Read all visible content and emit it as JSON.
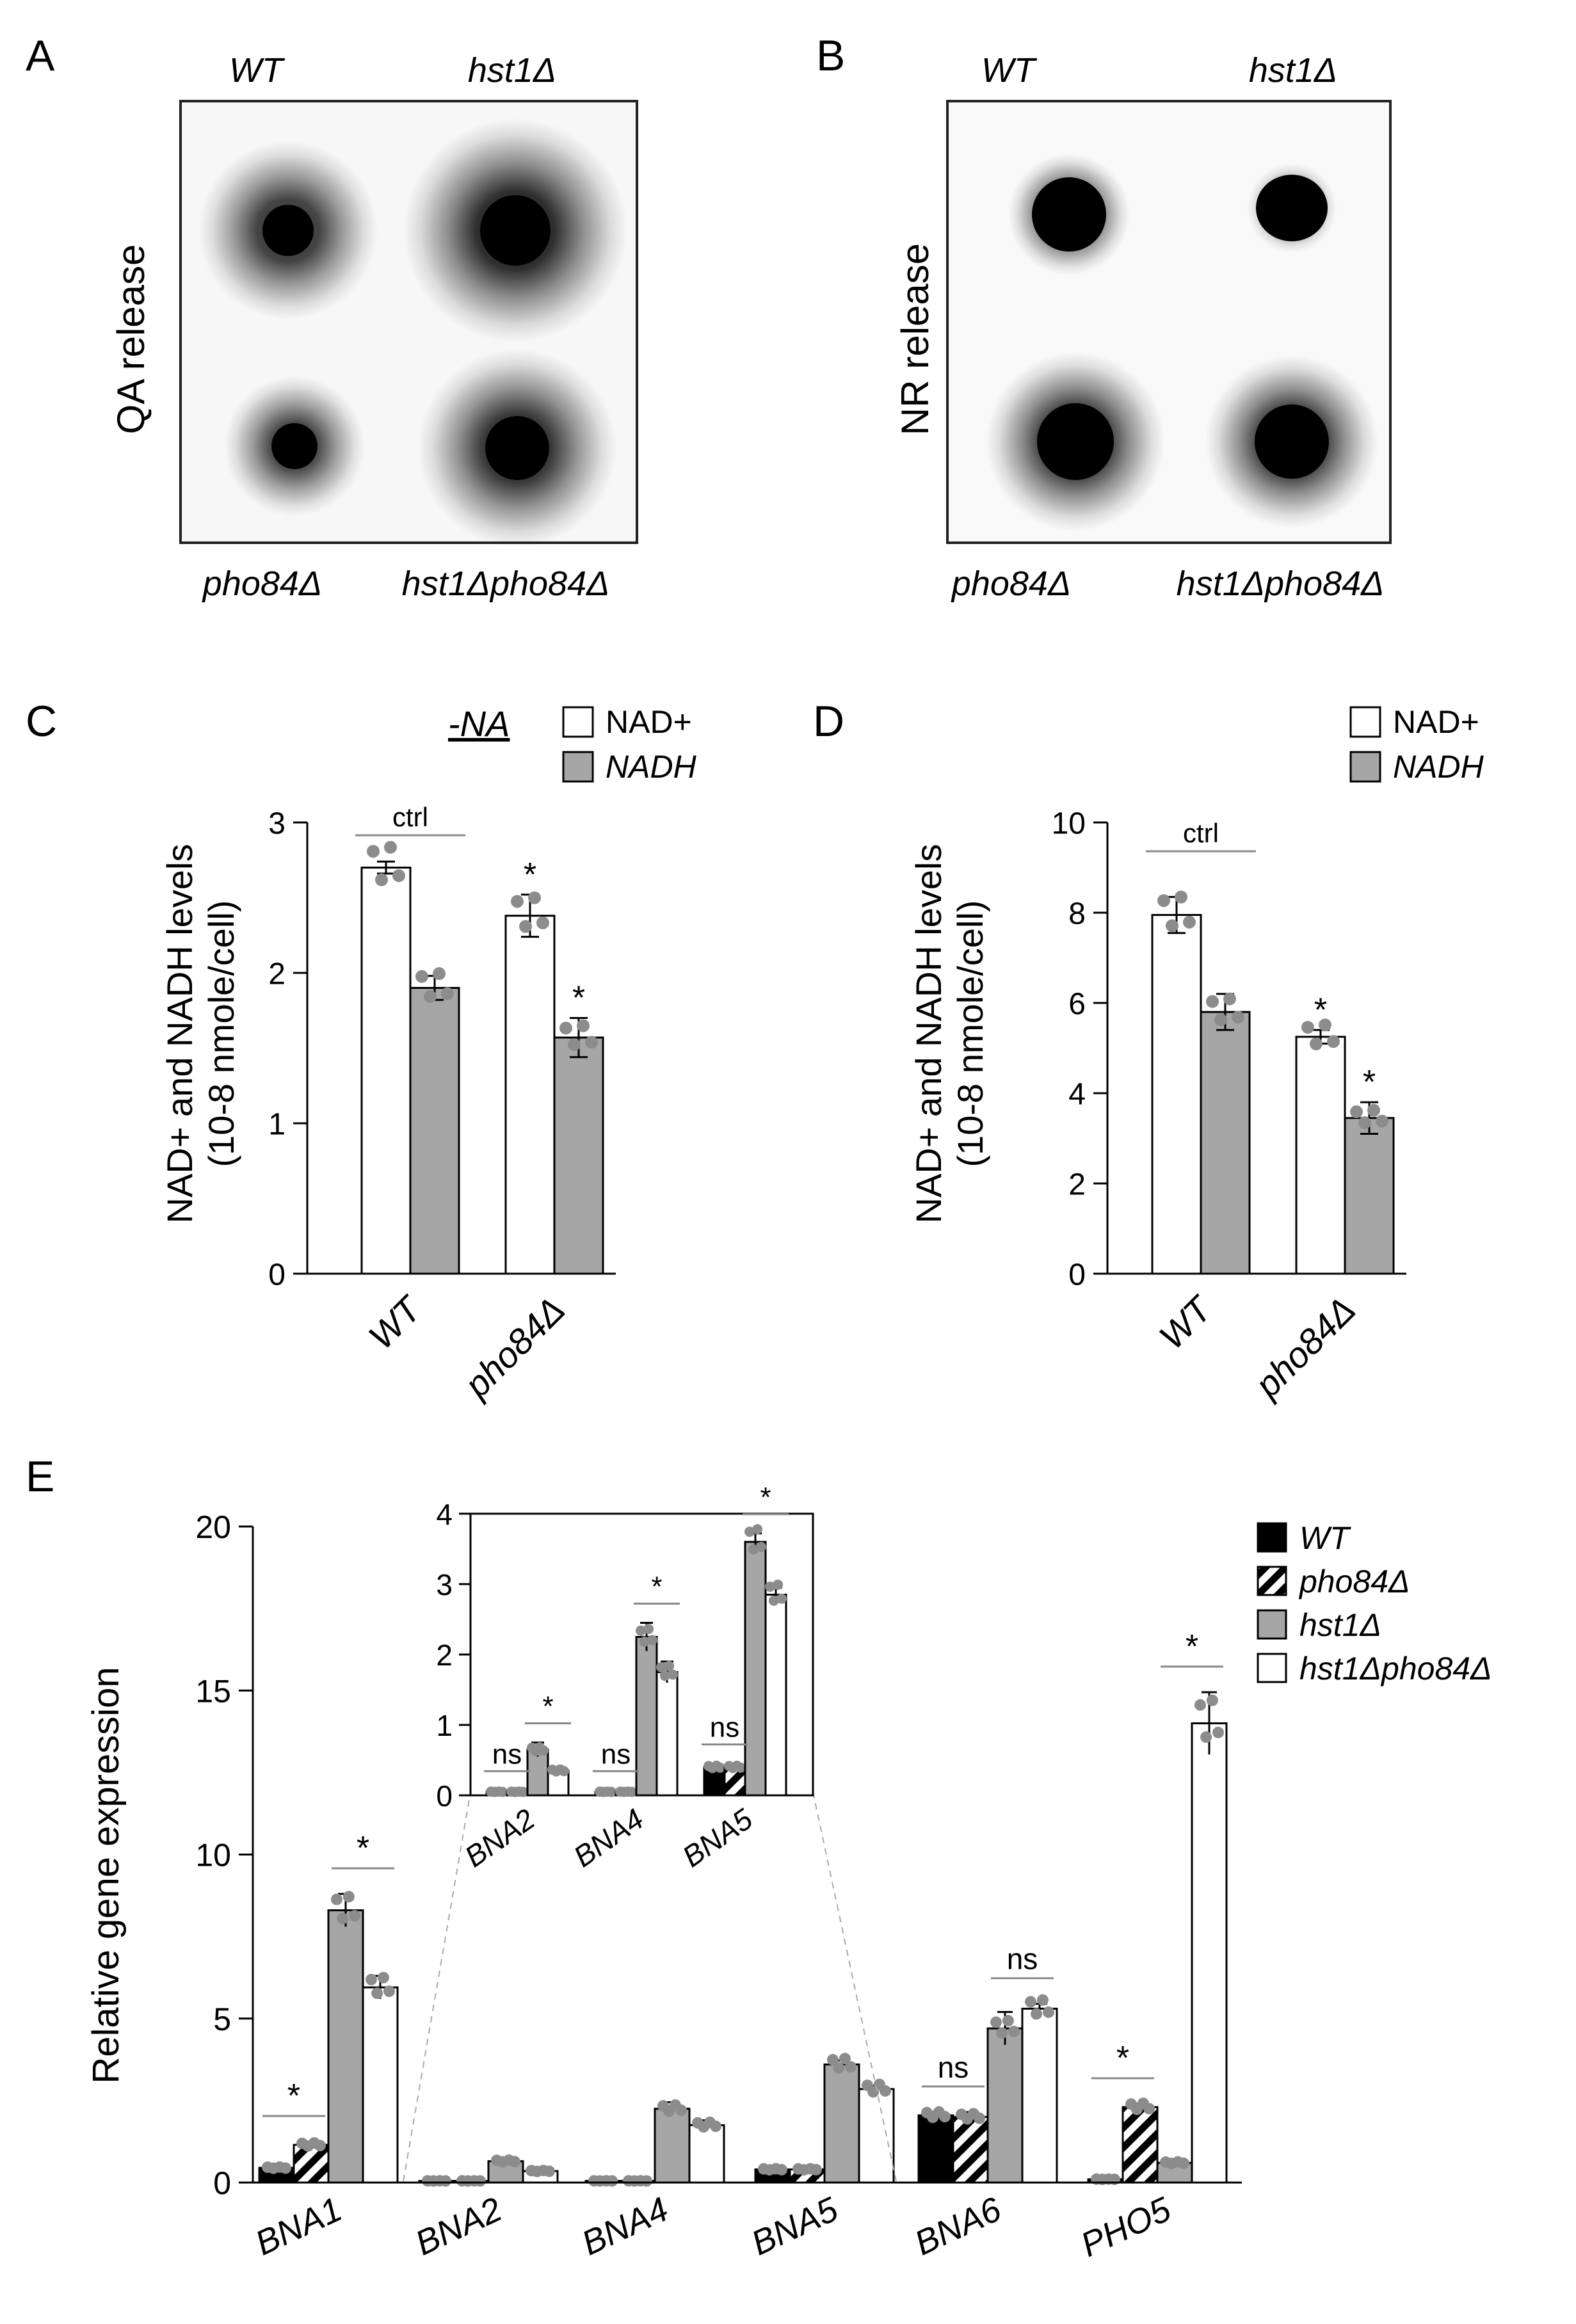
{
  "panels": {
    "A": {
      "letter": "A",
      "side_label": "QA release",
      "top_left": "WT",
      "top_right": "hst1Δ",
      "bottom_left": "pho84Δ",
      "bottom_right": "hst1Δpho84Δ"
    },
    "B": {
      "letter": "B",
      "side_label": "NR release",
      "top_left": "WT",
      "top_right": "hst1Δ",
      "bottom_left": "pho84Δ",
      "bottom_right": "hst1Δpho84Δ"
    },
    "C": {
      "letter": "C",
      "condition": "-NA"
    },
    "D": {
      "letter": "D"
    },
    "E": {
      "letter": "E"
    }
  },
  "colors": {
    "nad": "#ffffff",
    "nadh": "#a6a6a6",
    "wt": "#000000",
    "hst1": "#a6a6a6",
    "hst1pho84": "#ffffff",
    "dot": "#8c8c8c"
  },
  "chart_data": [
    {
      "id": "C",
      "type": "bar",
      "categories": [
        "WT",
        "pho84Δ"
      ],
      "series": [
        {
          "name": "NAD+",
          "values": [
            2.7,
            2.38
          ],
          "errors": [
            0.04,
            0.14
          ]
        },
        {
          "name": "NADH",
          "values": [
            1.9,
            1.57
          ],
          "errors": [
            0.08,
            0.13
          ]
        }
      ],
      "ylabel_line1": "NAD+ and NADH levels",
      "ylabel_line2": "(10-8 nmole/cell)",
      "ylim": [
        0,
        3
      ],
      "yticks": [
        "0",
        "1",
        "2",
        "3"
      ],
      "legend": [
        "NAD+",
        "NADH"
      ],
      "legend_position": "top-right",
      "annotations": [
        "ctrl",
        "*",
        "*"
      ]
    },
    {
      "id": "D",
      "type": "bar",
      "categories": [
        "WT",
        "pho84Δ"
      ],
      "series": [
        {
          "name": "NAD+",
          "values": [
            7.95,
            5.25
          ],
          "errors": [
            0.4,
            0.15
          ]
        },
        {
          "name": "NADH",
          "values": [
            5.8,
            3.45
          ],
          "errors": [
            0.4,
            0.35
          ]
        }
      ],
      "ylabel_line1": "NAD+ and NADH levels",
      "ylabel_line2": "(10-8 nmole/cell)",
      "ylim": [
        0,
        10
      ],
      "yticks": [
        "0",
        "2",
        "4",
        "6",
        "8",
        "10"
      ],
      "legend": [
        "NAD+",
        "NADH"
      ],
      "legend_position": "top-right",
      "annotations": [
        "ctrl",
        "*",
        "*"
      ]
    },
    {
      "id": "E",
      "type": "bar",
      "categories": [
        "BNA1",
        "BNA2",
        "BNA4",
        "BNA5",
        "BNA6",
        "PHO5"
      ],
      "series": [
        {
          "name": "WT",
          "values": [
            0.45,
            0.05,
            0.05,
            0.4,
            2.05,
            0.1
          ],
          "errors": [
            0.1,
            0.02,
            0.02,
            0.05,
            0.1,
            0.05
          ]
        },
        {
          "name": "pho84Δ",
          "values": [
            1.15,
            0.05,
            0.05,
            0.4,
            2.0,
            2.3
          ],
          "errors": [
            0.1,
            0.02,
            0.02,
            0.05,
            0.15,
            0.1
          ]
        },
        {
          "name": "hst1Δ",
          "values": [
            8.3,
            0.65,
            2.25,
            3.6,
            4.7,
            0.6
          ],
          "errors": [
            0.5,
            0.1,
            0.2,
            0.12,
            0.5,
            0.1
          ]
        },
        {
          "name": "hst1Δpho84Δ",
          "values": [
            5.95,
            0.35,
            1.75,
            2.85,
            5.3,
            14.0
          ],
          "errors": [
            0.35,
            0.05,
            0.15,
            0.1,
            0.15,
            0.95
          ]
        }
      ],
      "ylabel": "Relative gene expression",
      "ylim": [
        0,
        20
      ],
      "yticks": [
        "0",
        "5",
        "10",
        "15",
        "20"
      ],
      "legend": [
        "WT",
        "pho84Δ",
        "hst1Δ",
        "hst1Δpho84Δ"
      ],
      "legend_position": "right",
      "annotations": [
        "*",
        "*",
        "ns",
        "ns",
        "*",
        "*"
      ],
      "inset": {
        "categories": [
          "BNA2",
          "BNA4",
          "BNA5"
        ],
        "ylim": [
          0,
          4
        ],
        "yticks": [
          "0",
          "1",
          "2",
          "3",
          "4"
        ],
        "annotations": [
          "ns",
          "*",
          "ns",
          "*",
          "ns",
          "*"
        ]
      }
    }
  ]
}
